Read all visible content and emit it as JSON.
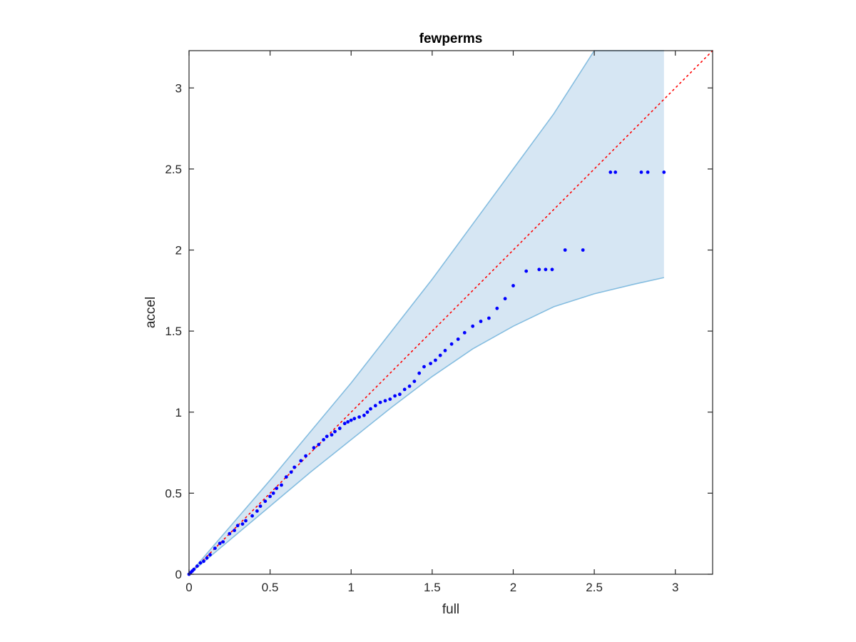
{
  "chart_data": {
    "type": "scatter",
    "title": "fewperms",
    "xlabel": "full",
    "ylabel": "accel",
    "xlim": [
      0,
      3.23
    ],
    "ylim": [
      0,
      3.23
    ],
    "xticks": [
      0,
      0.5,
      1,
      1.5,
      2,
      2.5,
      3
    ],
    "yticks": [
      0,
      0.5,
      1,
      1.5,
      2,
      2.5,
      3
    ],
    "grid": false,
    "colors": {
      "points": "#0000ff",
      "band_fill": "#d6e6f3",
      "band_edge": "#85bde0",
      "reference_line": "#ff0000",
      "axes": "#262626"
    },
    "confidence_band": {
      "x": [
        0,
        0.25,
        0.5,
        0.75,
        1.0,
        1.25,
        1.5,
        1.75,
        2.0,
        2.25,
        2.5,
        2.75,
        2.93
      ],
      "upper": [
        0,
        0.29,
        0.58,
        0.88,
        1.18,
        1.5,
        1.82,
        2.16,
        2.5,
        2.84,
        3.23,
        3.23,
        3.23
      ],
      "lower": [
        0,
        0.21,
        0.42,
        0.63,
        0.83,
        1.03,
        1.22,
        1.39,
        1.53,
        1.65,
        1.73,
        1.79,
        1.83
      ]
    },
    "reference_line": {
      "x": [
        0,
        3.23
      ],
      "y": [
        0,
        3.23
      ]
    },
    "points": [
      {
        "x": 0.0,
        "y": 0.0
      },
      {
        "x": 0.01,
        "y": 0.01
      },
      {
        "x": 0.02,
        "y": 0.02
      },
      {
        "x": 0.03,
        "y": 0.03
      },
      {
        "x": 0.05,
        "y": 0.05
      },
      {
        "x": 0.07,
        "y": 0.07
      },
      {
        "x": 0.09,
        "y": 0.08
      },
      {
        "x": 0.11,
        "y": 0.1
      },
      {
        "x": 0.13,
        "y": 0.12
      },
      {
        "x": 0.16,
        "y": 0.16
      },
      {
        "x": 0.19,
        "y": 0.19
      },
      {
        "x": 0.21,
        "y": 0.2
      },
      {
        "x": 0.25,
        "y": 0.25
      },
      {
        "x": 0.28,
        "y": 0.27
      },
      {
        "x": 0.3,
        "y": 0.3
      },
      {
        "x": 0.33,
        "y": 0.31
      },
      {
        "x": 0.35,
        "y": 0.33
      },
      {
        "x": 0.39,
        "y": 0.36
      },
      {
        "x": 0.42,
        "y": 0.39
      },
      {
        "x": 0.44,
        "y": 0.42
      },
      {
        "x": 0.47,
        "y": 0.45
      },
      {
        "x": 0.5,
        "y": 0.48
      },
      {
        "x": 0.52,
        "y": 0.5
      },
      {
        "x": 0.54,
        "y": 0.53
      },
      {
        "x": 0.57,
        "y": 0.55
      },
      {
        "x": 0.6,
        "y": 0.6
      },
      {
        "x": 0.63,
        "y": 0.63
      },
      {
        "x": 0.65,
        "y": 0.66
      },
      {
        "x": 0.69,
        "y": 0.7
      },
      {
        "x": 0.72,
        "y": 0.73
      },
      {
        "x": 0.77,
        "y": 0.78
      },
      {
        "x": 0.8,
        "y": 0.8
      },
      {
        "x": 0.83,
        "y": 0.83
      },
      {
        "x": 0.85,
        "y": 0.85
      },
      {
        "x": 0.88,
        "y": 0.86
      },
      {
        "x": 0.9,
        "y": 0.88
      },
      {
        "x": 0.93,
        "y": 0.9
      },
      {
        "x": 0.96,
        "y": 0.93
      },
      {
        "x": 0.98,
        "y": 0.94
      },
      {
        "x": 1.0,
        "y": 0.95
      },
      {
        "x": 1.02,
        "y": 0.96
      },
      {
        "x": 1.05,
        "y": 0.97
      },
      {
        "x": 1.08,
        "y": 0.98
      },
      {
        "x": 1.1,
        "y": 1.0
      },
      {
        "x": 1.12,
        "y": 1.02
      },
      {
        "x": 1.15,
        "y": 1.04
      },
      {
        "x": 1.18,
        "y": 1.06
      },
      {
        "x": 1.21,
        "y": 1.07
      },
      {
        "x": 1.24,
        "y": 1.08
      },
      {
        "x": 1.27,
        "y": 1.1
      },
      {
        "x": 1.3,
        "y": 1.11
      },
      {
        "x": 1.33,
        "y": 1.14
      },
      {
        "x": 1.36,
        "y": 1.16
      },
      {
        "x": 1.39,
        "y": 1.19
      },
      {
        "x": 1.42,
        "y": 1.24
      },
      {
        "x": 1.45,
        "y": 1.28
      },
      {
        "x": 1.49,
        "y": 1.3
      },
      {
        "x": 1.52,
        "y": 1.32
      },
      {
        "x": 1.55,
        "y": 1.35
      },
      {
        "x": 1.58,
        "y": 1.38
      },
      {
        "x": 1.62,
        "y": 1.42
      },
      {
        "x": 1.66,
        "y": 1.45
      },
      {
        "x": 1.7,
        "y": 1.49
      },
      {
        "x": 1.75,
        "y": 1.53
      },
      {
        "x": 1.8,
        "y": 1.56
      },
      {
        "x": 1.85,
        "y": 1.58
      },
      {
        "x": 1.9,
        "y": 1.64
      },
      {
        "x": 1.95,
        "y": 1.7
      },
      {
        "x": 2.0,
        "y": 1.78
      },
      {
        "x": 2.08,
        "y": 1.87
      },
      {
        "x": 2.16,
        "y": 1.88
      },
      {
        "x": 2.2,
        "y": 1.88
      },
      {
        "x": 2.24,
        "y": 1.88
      },
      {
        "x": 2.32,
        "y": 2.0
      },
      {
        "x": 2.43,
        "y": 2.0
      },
      {
        "x": 2.6,
        "y": 2.48
      },
      {
        "x": 2.63,
        "y": 2.48
      },
      {
        "x": 2.79,
        "y": 2.48
      },
      {
        "x": 2.83,
        "y": 2.48
      },
      {
        "x": 2.93,
        "y": 2.48
      }
    ]
  }
}
